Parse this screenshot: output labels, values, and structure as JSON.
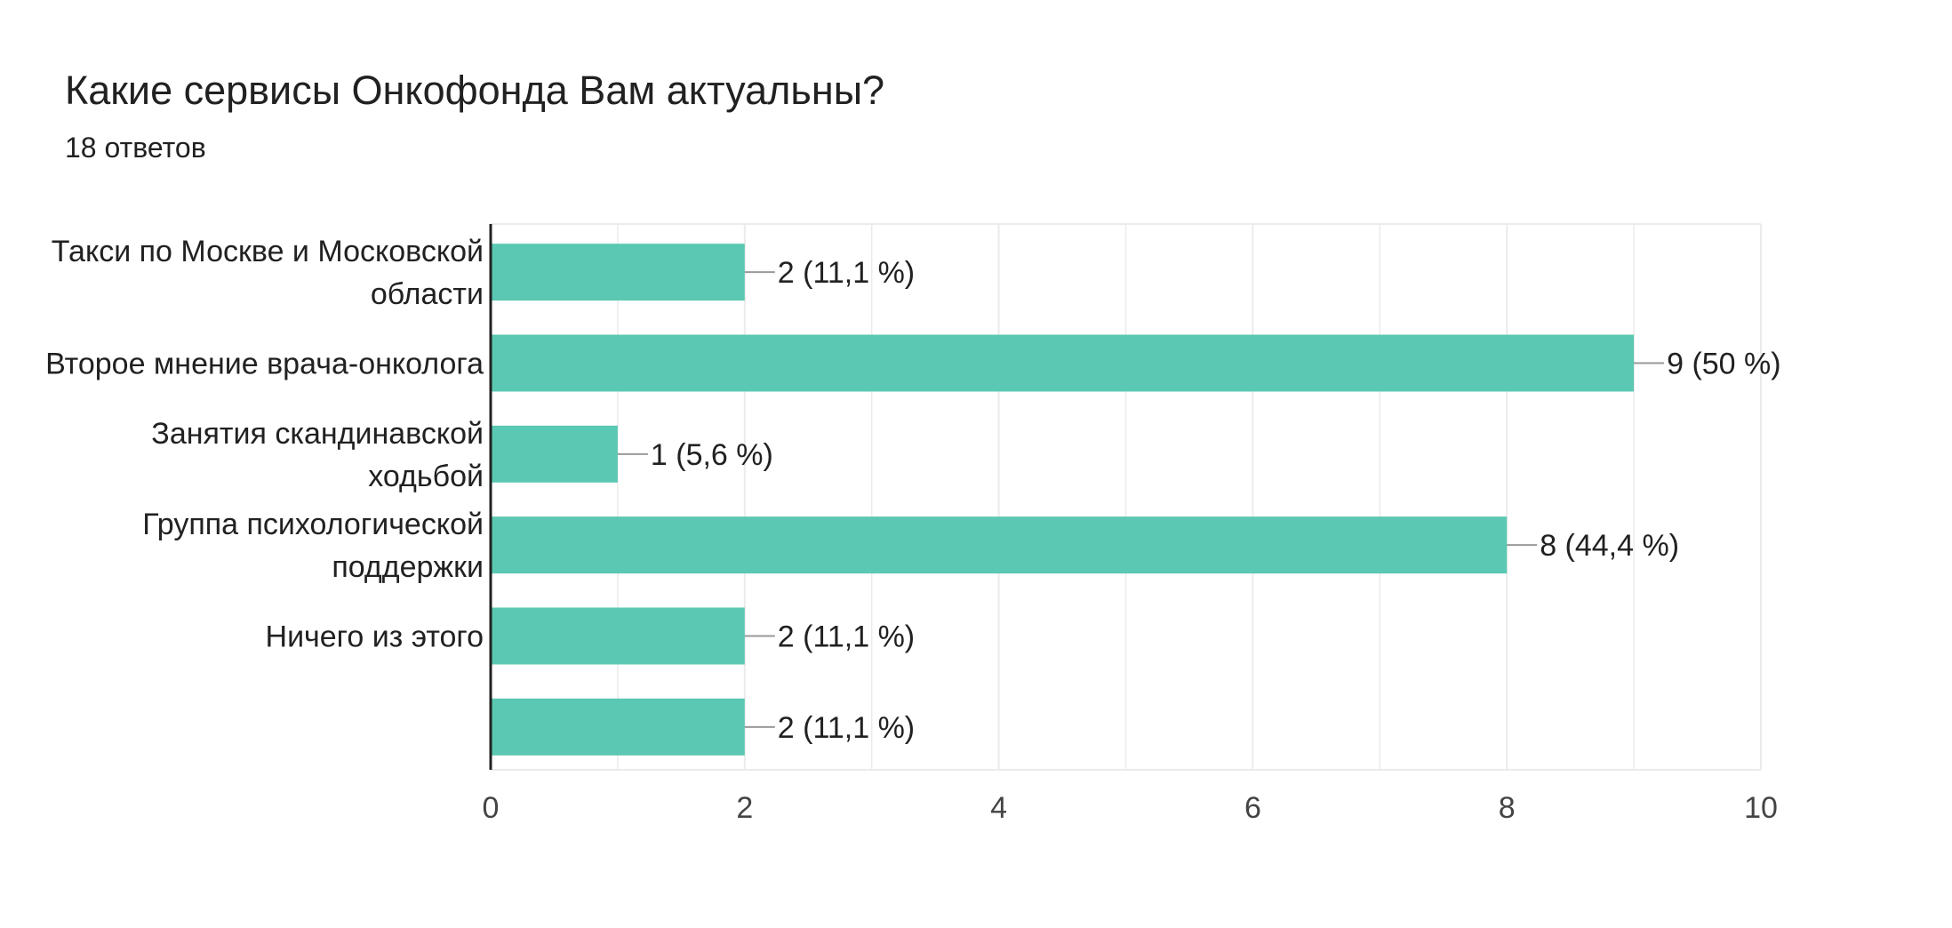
{
  "question": {
    "title": "Какие сервисы Онкофонда Вам актуальны?",
    "responses": "18 ответов"
  },
  "colors": {
    "bar": "#5ac8b2",
    "axis": "#212121",
    "grid": "#ebebeb",
    "text": "#212121",
    "tick": "#444444",
    "leader": "#999999"
  },
  "chart_data": {
    "type": "bar",
    "orientation": "horizontal",
    "categories": [
      [
        "Такси по Москве и Московской",
        "области"
      ],
      [
        "Второе мнение врача-онколога"
      ],
      [
        "Занятия скандинавской",
        "ходьбой"
      ],
      [
        "Группа психологической",
        "поддержки"
      ],
      [
        "Ничего из этого"
      ],
      [
        ""
      ]
    ],
    "values": [
      2,
      9,
      1,
      8,
      2,
      2
    ],
    "data_labels": [
      "2 (11,1 %)",
      "9 (50 %)",
      "1 (5,6 %)",
      "8 (44,4 %)",
      "2 (11,1 %)",
      "2 (11,1 %)"
    ],
    "xlim": [
      0,
      10
    ],
    "xticks": [
      "0",
      "2",
      "4",
      "6",
      "8",
      "10"
    ],
    "grid": true
  }
}
